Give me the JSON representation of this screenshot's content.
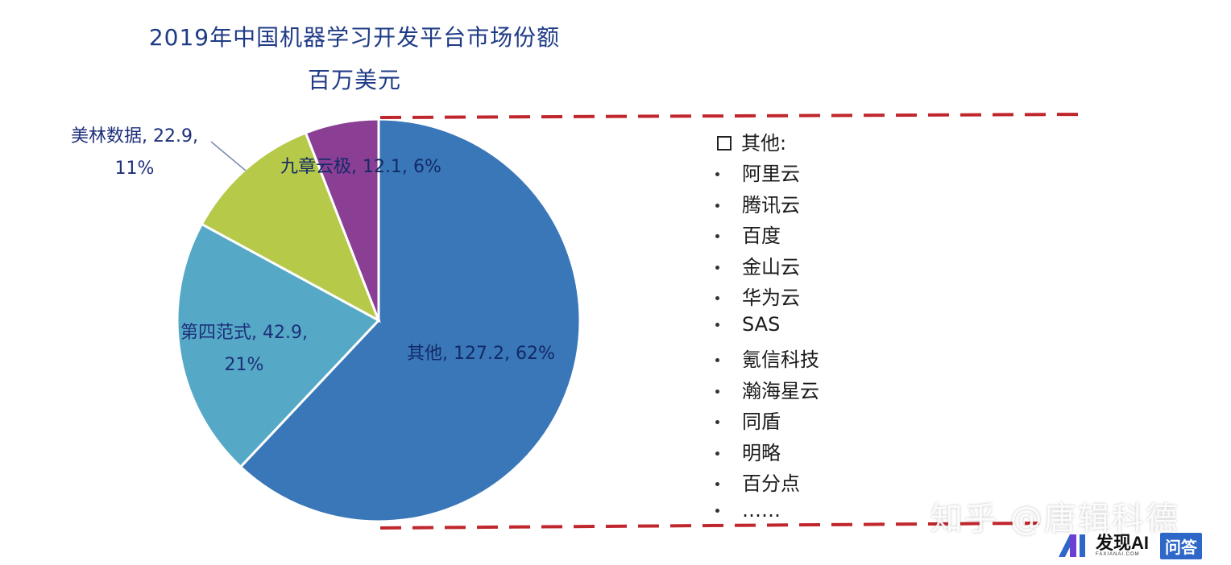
{
  "chart_data": {
    "type": "pie",
    "title": "2019年中国机器学习开发平台市场份额",
    "subtitle": "百万美元",
    "slices": [
      {
        "name": "其他",
        "value": 127.2,
        "percent": "62%",
        "label_line1": "其他, 127.2, 62%",
        "label_line2": "",
        "color": "#3a77b8"
      },
      {
        "name": "第四范式",
        "value": 42.9,
        "percent": "21%",
        "label_line1": "第四范式, 42.9,",
        "label_line2": "21%",
        "color": "#55a9c6"
      },
      {
        "name": "美林数据",
        "value": 22.9,
        "percent": "11%",
        "label_line1": "美林数据, 22.9,",
        "label_line2": "11%",
        "color": "#b6c949"
      },
      {
        "name": "九章云极",
        "value": 12.1,
        "percent": "6%",
        "label_line1": "九章云极, 12.1, 6%",
        "label_line2": "",
        "color": "#8a3f95"
      }
    ],
    "legend_note": {
      "heading": "其他:",
      "items": [
        "阿里云",
        "腾讯云",
        "百度",
        "金山云",
        "华为云",
        "SAS",
        "氪信科技",
        "瀚海星云",
        "同盾",
        "明略",
        "百分点",
        "……"
      ]
    },
    "border_color": "#c0272d"
  },
  "watermark": "知乎 @唐辑科德",
  "brand": {
    "name": "发现AI",
    "sub": "FAXIANAI.COM",
    "badge": "问答"
  }
}
